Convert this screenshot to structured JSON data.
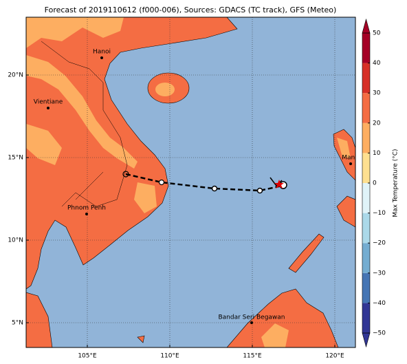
{
  "title": "Forecast of 2019110612 (f000-006), Sources: GDACS (TC track), GFS (Meteo)",
  "map": {
    "lon_ticks": [
      {
        "value": 105,
        "label": "105°E"
      },
      {
        "value": 110,
        "label": "110°E"
      },
      {
        "value": 115,
        "label": "115°E"
      },
      {
        "value": 120,
        "label": "120°E"
      }
    ],
    "lat_ticks": [
      {
        "value": 5,
        "label": "5°N"
      },
      {
        "value": 10,
        "label": "10°N"
      },
      {
        "value": 15,
        "label": "15°N"
      },
      {
        "value": 20,
        "label": "20°N"
      }
    ],
    "cities": [
      "Hanoi",
      "Vientiane",
      "Phnom Penh",
      "Manila",
      "Bandar Seri Begawan"
    ]
  },
  "colorbar": {
    "label": "Max Temperature (°C)",
    "range": [
      -50,
      50
    ],
    "ticks": [
      {
        "value": -50,
        "label": "−50"
      },
      {
        "value": -40,
        "label": "−40"
      },
      {
        "value": -30,
        "label": "−30"
      },
      {
        "value": -20,
        "label": "−20"
      },
      {
        "value": -10,
        "label": "−10"
      },
      0,
      10,
      20,
      30,
      40,
      50
    ],
    "colors": [
      "#313695",
      "#4575b4",
      "#74add1",
      "#abd9e9",
      "#e0f3f8",
      "#fee090",
      "#fdae61",
      "#f46d43",
      "#d73027",
      "#a50026"
    ]
  }
}
